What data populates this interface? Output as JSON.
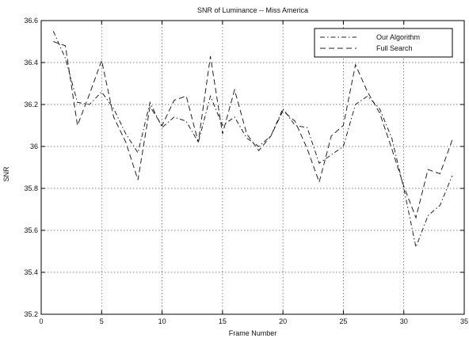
{
  "chart_data": {
    "type": "line",
    "title": "SNR of Luminance -- Miss America",
    "xlabel": "Frame Number",
    "ylabel": "SNR",
    "xlim": [
      0,
      35
    ],
    "ylim": [
      35.2,
      36.6
    ],
    "xticks": [
      0,
      5,
      10,
      15,
      20,
      25,
      30,
      35
    ],
    "yticks": [
      35.2,
      35.4,
      35.6,
      35.8,
      36.0,
      36.2,
      36.4,
      36.6
    ],
    "xtick_labels": [
      "0",
      "5",
      "10",
      "15",
      "20",
      "25",
      "30",
      "35"
    ],
    "ytick_labels": [
      "35.2",
      "35.4",
      "35.6",
      "35.8",
      "36",
      "36.2",
      "36.4",
      "36.6"
    ],
    "grid": true,
    "legend_position": "top-right",
    "series": [
      {
        "name": "Our Algorithm",
        "style": "dash-dot",
        "color": "#222222",
        "x": [
          1,
          2,
          3,
          4,
          5,
          6,
          7,
          8,
          9,
          10,
          11,
          12,
          13,
          14,
          15,
          16,
          17,
          18,
          19,
          20,
          21,
          22,
          23,
          24,
          25,
          26,
          27,
          28,
          29,
          30,
          31,
          32,
          33,
          34
        ],
        "values": [
          36.55,
          36.42,
          36.21,
          36.2,
          36.26,
          36.18,
          36.06,
          35.97,
          36.21,
          36.09,
          36.14,
          36.12,
          36.02,
          36.24,
          36.1,
          36.14,
          36.04,
          36.0,
          36.05,
          36.18,
          36.1,
          36.09,
          35.92,
          35.96,
          36.0,
          36.2,
          36.24,
          36.18,
          36.04,
          35.8,
          35.52,
          35.67,
          35.72,
          35.86
        ]
      },
      {
        "name": "Full Search",
        "style": "dashed",
        "color": "#222222",
        "x": [
          1,
          2,
          3,
          4,
          5,
          6,
          7,
          8,
          9,
          10,
          11,
          12,
          13,
          14,
          15,
          16,
          17,
          18,
          19,
          20,
          21,
          22,
          23,
          24,
          25,
          26,
          27,
          28,
          29,
          30,
          31,
          32,
          33,
          34
        ],
        "values": [
          36.5,
          36.48,
          36.1,
          36.25,
          36.41,
          36.14,
          36.02,
          35.84,
          36.19,
          36.1,
          36.22,
          36.24,
          36.02,
          36.43,
          36.06,
          36.27,
          36.06,
          35.98,
          36.05,
          36.17,
          36.12,
          35.99,
          35.83,
          36.05,
          36.1,
          36.39,
          36.26,
          36.16,
          35.99,
          35.81,
          35.66,
          35.89,
          35.87,
          36.03
        ]
      }
    ]
  }
}
